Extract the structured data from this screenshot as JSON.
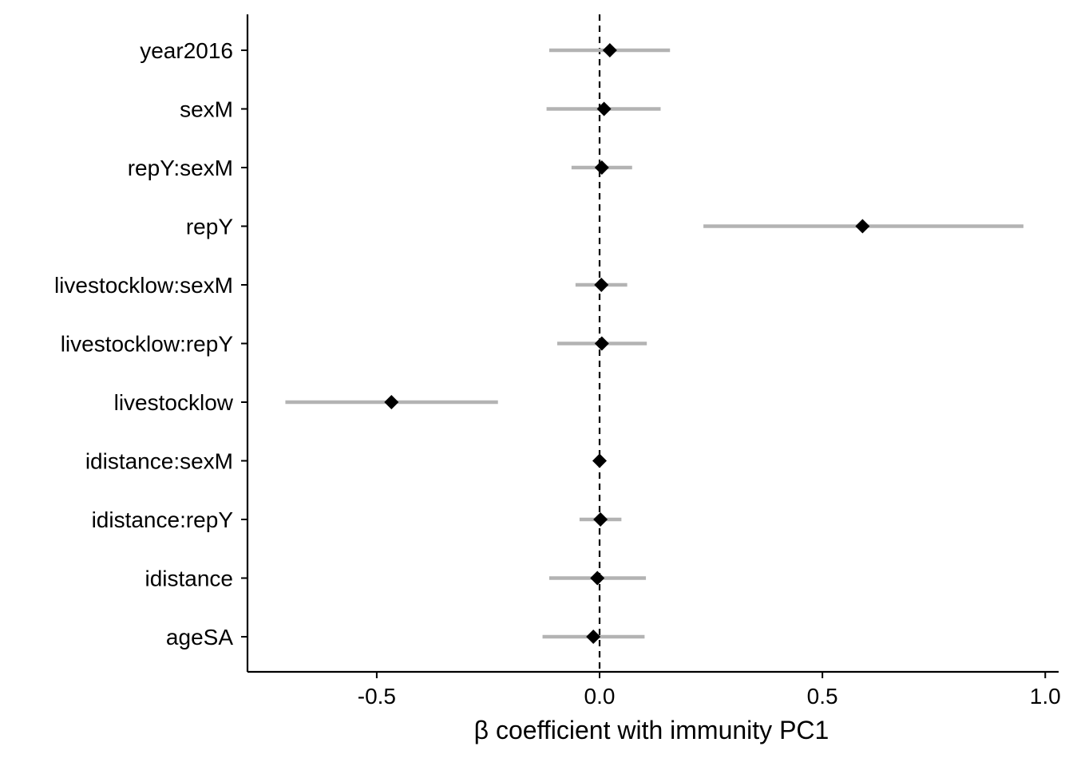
{
  "chart_data": {
    "type": "forest",
    "title": "",
    "xlabel": "β coefficient with immunity PC1",
    "ylabel": "",
    "xlim": [
      -0.79,
      1.03
    ],
    "x_ticks": [
      -0.5,
      0.0,
      0.5,
      1.0
    ],
    "x_tick_labels": [
      "-0.5",
      "0.0",
      "0.5",
      "1.0"
    ],
    "reference_line": 0.0,
    "grid": false,
    "legend": "none",
    "colors": {
      "point": "#000000",
      "interval": "#b3b3b3",
      "axis": "#000000",
      "reference": "#000000"
    },
    "terms": [
      {
        "label": "year2016",
        "estimate": 0.023,
        "lower": -0.113,
        "upper": 0.158
      },
      {
        "label": "sexM",
        "estimate": 0.01,
        "lower": -0.119,
        "upper": 0.137
      },
      {
        "label": "repY:sexM",
        "estimate": 0.005,
        "lower": -0.063,
        "upper": 0.073
      },
      {
        "label": "repY",
        "estimate": 0.59,
        "lower": 0.233,
        "upper": 0.951
      },
      {
        "label": "livestocklow:sexM",
        "estimate": 0.004,
        "lower": -0.054,
        "upper": 0.062
      },
      {
        "label": "livestocklow:repY",
        "estimate": 0.005,
        "lower": -0.095,
        "upper": 0.106
      },
      {
        "label": "livestocklow",
        "estimate": -0.467,
        "lower": -0.705,
        "upper": -0.228
      },
      {
        "label": "idistance:sexM",
        "estimate": 0.0,
        "lower": -0.006,
        "upper": 0.006
      },
      {
        "label": "idistance:repY",
        "estimate": 0.002,
        "lower": -0.045,
        "upper": 0.049
      },
      {
        "label": "idistance",
        "estimate": -0.005,
        "lower": -0.113,
        "upper": 0.104
      },
      {
        "label": "ageSA",
        "estimate": -0.014,
        "lower": -0.128,
        "upper": 0.101
      }
    ]
  }
}
